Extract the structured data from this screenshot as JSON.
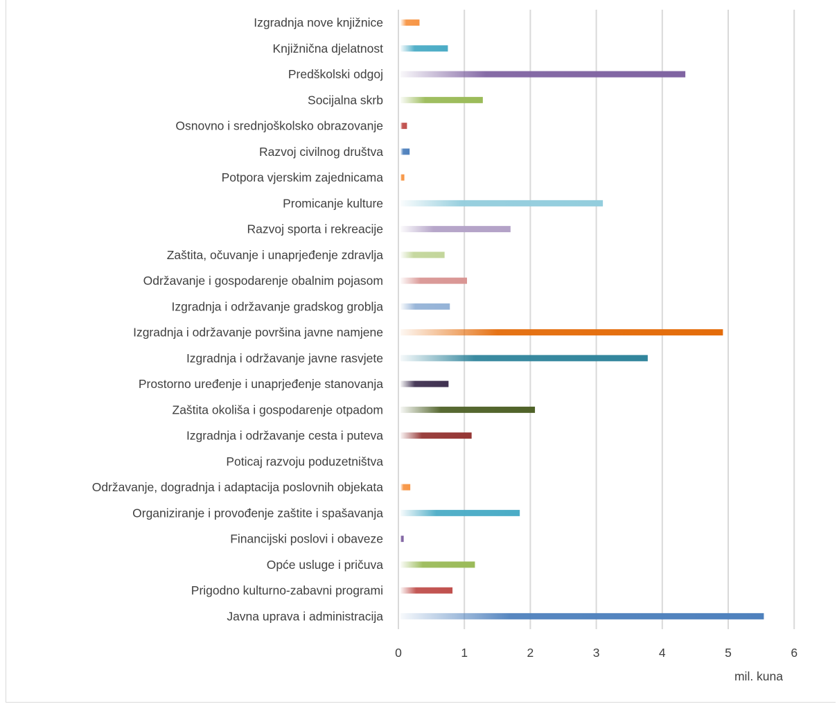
{
  "chart_data": {
    "type": "bar",
    "orientation": "horizontal",
    "xlabel": "mil. kuna",
    "xlim": [
      0,
      6
    ],
    "xticks": [
      "0",
      "1",
      "2",
      "3",
      "4",
      "5",
      "6"
    ],
    "grid": true,
    "legend": "none",
    "categories": [
      "Izgradnja nove knjižnice",
      "Knjižnična djelatnost",
      "Predškolski odgoj",
      "Socijalna skrb",
      "Osnovno i srednjoškolsko obrazovanje",
      "Razvoj civilnog društva",
      "Potpora vjerskim zajednicama",
      "Promicanje kulture",
      "Razvoj sporta i rekreacije",
      "Zaštita, očuvanje i unaprjeđenje zdravlja",
      "Održavanje i gospodarenje obalnim pojasom",
      "Izgradnja i održavanje gradskog groblja",
      "Izgradnja i održavanje površina javne namjene",
      "Izgradnja i održavanje javne rasvjete",
      "Prostorno uređenje i unaprjeđenje stanovanja",
      "Zaštita okoliša i gospodarenje otpadom",
      "Izgradnja i održavanje cesta i puteva",
      "Poticaj razvoju  poduzetništva",
      "Održavanje, dogradnja i adaptacija poslovnih objekata",
      "Organiziranje i provođenje zaštite i spašavanja",
      "Financijski poslovi i obaveze",
      "Opće usluge i pričuva",
      "Prigodno kulturno-zabavni programi",
      "Javna uprava i administracija"
    ],
    "values": [
      0.32,
      0.75,
      4.35,
      1.28,
      0.13,
      0.17,
      0.09,
      3.1,
      1.7,
      0.7,
      1.04,
      0.78,
      4.92,
      3.78,
      0.76,
      2.07,
      1.11,
      0.0,
      0.18,
      1.84,
      0.08,
      1.16,
      0.82,
      5.54
    ],
    "colors": [
      "#f79646",
      "#4bacc6",
      "#8064a2",
      "#9bbb59",
      "#c0504d",
      "#4f81bd",
      "#f79646",
      "#93cddd",
      "#b3a2c7",
      "#c3d69b",
      "#d99694",
      "#95b3d7",
      "#e46c0a",
      "#31859c",
      "#403151",
      "#4f6228",
      "#953735",
      "#4bacc6",
      "#f79646",
      "#4bacc6",
      "#8064a2",
      "#9bbb59",
      "#c0504d",
      "#4f81bd"
    ]
  }
}
